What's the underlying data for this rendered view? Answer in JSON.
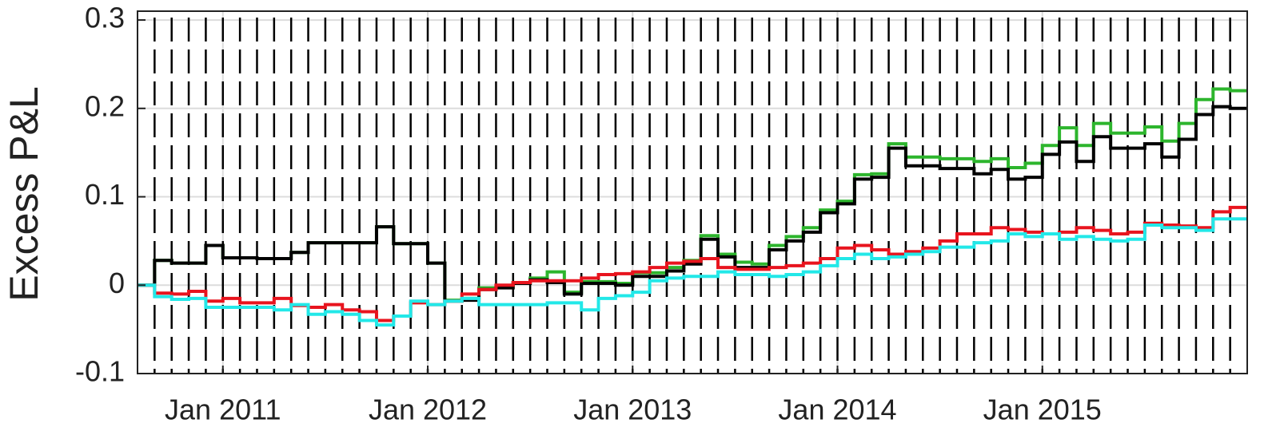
{
  "chart_data": {
    "type": "line",
    "ylabel": "Excess P&L",
    "x": [
      "2010-08",
      "2010-09",
      "2010-10",
      "2010-11",
      "2010-12",
      "2011-01",
      "2011-02",
      "2011-03",
      "2011-04",
      "2011-05",
      "2011-06",
      "2011-07",
      "2011-08",
      "2011-09",
      "2011-10",
      "2011-11",
      "2011-12",
      "2012-01",
      "2012-02",
      "2012-03",
      "2012-04",
      "2012-05",
      "2012-06",
      "2012-07",
      "2012-08",
      "2012-09",
      "2012-10",
      "2012-11",
      "2012-12",
      "2013-01",
      "2013-02",
      "2013-03",
      "2013-04",
      "2013-05",
      "2013-06",
      "2013-07",
      "2013-08",
      "2013-09",
      "2013-10",
      "2013-11",
      "2013-12",
      "2014-01",
      "2014-02",
      "2014-03",
      "2014-04",
      "2014-05",
      "2014-06",
      "2014-07",
      "2014-08",
      "2014-09",
      "2014-10",
      "2014-11",
      "2014-12",
      "2015-01",
      "2015-02",
      "2015-03",
      "2015-04",
      "2015-05",
      "2015-06",
      "2015-07",
      "2015-08",
      "2015-09",
      "2015-10",
      "2015-11",
      "2015-12"
    ],
    "series": [
      {
        "color": "#2db52d",
        "values": [
          0,
          0.028,
          0.025,
          0.025,
          0.045,
          0.031,
          0.031,
          0.03,
          0.03,
          0.037,
          0.048,
          0.048,
          0.048,
          0.048,
          0.066,
          0.047,
          0.047,
          0.025,
          -0.017,
          -0.015,
          -0.003,
          -0.001,
          0.003,
          0.008,
          0.015,
          -0.008,
          0.004,
          0.004,
          0.002,
          0.014,
          0.014,
          0.02,
          0.028,
          0.056,
          0.035,
          0.026,
          0.024,
          0.045,
          0.055,
          0.065,
          0.085,
          0.095,
          0.125,
          0.126,
          0.16,
          0.145,
          0.145,
          0.143,
          0.143,
          0.14,
          0.143,
          0.133,
          0.138,
          0.158,
          0.178,
          0.158,
          0.183,
          0.172,
          0.172,
          0.179,
          0.163,
          0.183,
          0.21,
          0.222,
          0.22
        ]
      },
      {
        "color": "#000000",
        "values": [
          0,
          0.028,
          0.025,
          0.025,
          0.045,
          0.031,
          0.031,
          0.03,
          0.03,
          0.037,
          0.048,
          0.048,
          0.048,
          0.048,
          0.066,
          0.047,
          0.047,
          0.025,
          -0.018,
          -0.017,
          -0.005,
          -0.003,
          0.002,
          0.006,
          0.003,
          -0.01,
          0.002,
          0.002,
          0.0,
          0.01,
          0.01,
          0.016,
          0.024,
          0.052,
          0.032,
          0.02,
          0.02,
          0.04,
          0.05,
          0.06,
          0.082,
          0.092,
          0.12,
          0.122,
          0.155,
          0.135,
          0.135,
          0.132,
          0.132,
          0.126,
          0.131,
          0.12,
          0.122,
          0.148,
          0.162,
          0.14,
          0.168,
          0.155,
          0.155,
          0.16,
          0.145,
          0.165,
          0.193,
          0.202,
          0.2
        ]
      },
      {
        "color": "#e8141e",
        "values": [
          0,
          -0.009,
          -0.01,
          -0.007,
          -0.018,
          -0.015,
          -0.02,
          -0.02,
          -0.015,
          -0.023,
          -0.025,
          -0.022,
          -0.028,
          -0.03,
          -0.04,
          -0.035,
          -0.02,
          -0.022,
          -0.018,
          -0.01,
          -0.005,
          0.0,
          0.003,
          0.005,
          0.005,
          0.005,
          0.008,
          0.012,
          0.013,
          0.015,
          0.02,
          0.025,
          0.027,
          0.03,
          0.02,
          0.018,
          0.018,
          0.02,
          0.022,
          0.025,
          0.03,
          0.042,
          0.045,
          0.04,
          0.035,
          0.038,
          0.042,
          0.05,
          0.058,
          0.058,
          0.065,
          0.063,
          0.06,
          0.058,
          0.06,
          0.065,
          0.062,
          0.058,
          0.06,
          0.07,
          0.068,
          0.067,
          0.065,
          0.083,
          0.088
        ]
      },
      {
        "color": "#22e8e8",
        "values": [
          0,
          -0.013,
          -0.016,
          -0.015,
          -0.025,
          -0.025,
          -0.025,
          -0.025,
          -0.028,
          -0.022,
          -0.033,
          -0.03,
          -0.033,
          -0.04,
          -0.045,
          -0.035,
          -0.018,
          -0.022,
          -0.018,
          -0.015,
          -0.022,
          -0.022,
          -0.022,
          -0.022,
          -0.02,
          -0.02,
          -0.028,
          -0.015,
          -0.012,
          -0.008,
          0.005,
          0.008,
          0.01,
          0.01,
          0.015,
          0.012,
          0.012,
          0.01,
          0.012,
          0.015,
          0.022,
          0.03,
          0.035,
          0.03,
          0.032,
          0.035,
          0.038,
          0.043,
          0.043,
          0.048,
          0.05,
          0.058,
          0.055,
          0.058,
          0.052,
          0.055,
          0.052,
          0.05,
          0.052,
          0.068,
          0.065,
          0.065,
          0.062,
          0.075,
          0.075
        ]
      }
    ],
    "xlim": [
      "2010-08",
      "2016-01"
    ],
    "xticks": [
      {
        "value": "2011-01",
        "label": "Jan 2011"
      },
      {
        "value": "2012-01",
        "label": "Jan 2012"
      },
      {
        "value": "2013-01",
        "label": "Jan 2013"
      },
      {
        "value": "2014-01",
        "label": "Jan 2014"
      },
      {
        "value": "2015-01",
        "label": "Jan 2015"
      }
    ],
    "ylim": [
      -0.1,
      0.31
    ],
    "yticks": [
      -0.1,
      0,
      0.1,
      0.2,
      0.3
    ],
    "grid": true
  }
}
